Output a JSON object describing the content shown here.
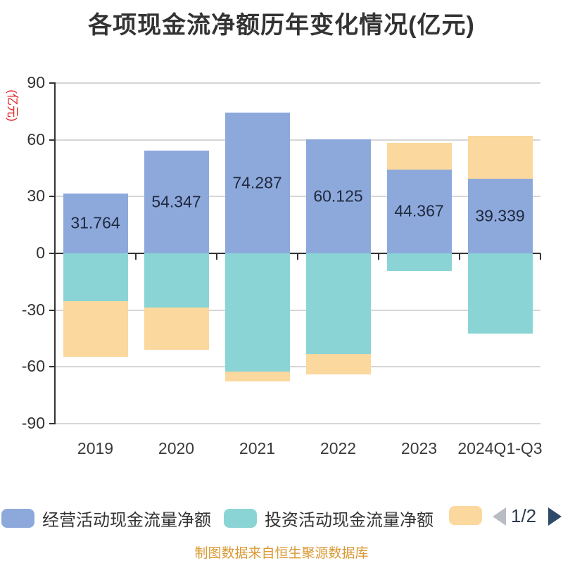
{
  "title": "各项现金流净额历年变化情况(亿元)",
  "y_axis_unit_label": "(亿元)",
  "footer": "制图数据来自恒生聚源数据库",
  "legend": {
    "items": [
      {
        "label": "经营活动现金流量净额",
        "color": "#8DA9DC"
      },
      {
        "label": "投资活动现金流量净额",
        "color": "#8BD4D6"
      },
      {
        "label": "",
        "color": "#FBD89D"
      }
    ],
    "pager": {
      "text": "1/2",
      "prev_color": "#B9BDC3",
      "next_color": "#2F4A69"
    }
  },
  "chart_data": {
    "type": "bar",
    "stacked": true,
    "title": "各项现金流净额历年变化情况(亿元)",
    "ylabel": "(亿元)",
    "categories": [
      "2019",
      "2020",
      "2021",
      "2022",
      "2023",
      "2024Q1-Q3"
    ],
    "series": [
      {
        "name": "经营活动现金流量净额",
        "color": "#8DA9DC",
        "values": [
          31.764,
          54.347,
          74.287,
          60.125,
          44.367,
          39.339
        ],
        "labels": [
          "31.764",
          "54.347",
          "74.287",
          "60.125",
          "44.367",
          "39.339"
        ]
      },
      {
        "name": "投资活动现金流量净额",
        "color": "#8BD4D6",
        "values": [
          -25.2,
          -28.5,
          -62.6,
          -53.3,
          -9.3,
          -42.4
        ]
      },
      {
        "name": "",
        "color": "#FBD89D",
        "values": [
          -29.4,
          -22.3,
          -5.0,
          -10.6,
          13.9,
          22.8
        ]
      }
    ],
    "y_ticks": [
      90,
      60,
      30,
      0,
      -30,
      -60,
      -90
    ],
    "ylim": [
      -90,
      90
    ],
    "grid": true,
    "legend_position": "bottom",
    "colors": {
      "grid_line": "#D6D6D6",
      "axis_line": "#333333",
      "tick_label": "#333333",
      "data_label": "#20293E",
      "unit_label": "#E02020",
      "footer_text": "#D99A36"
    }
  }
}
